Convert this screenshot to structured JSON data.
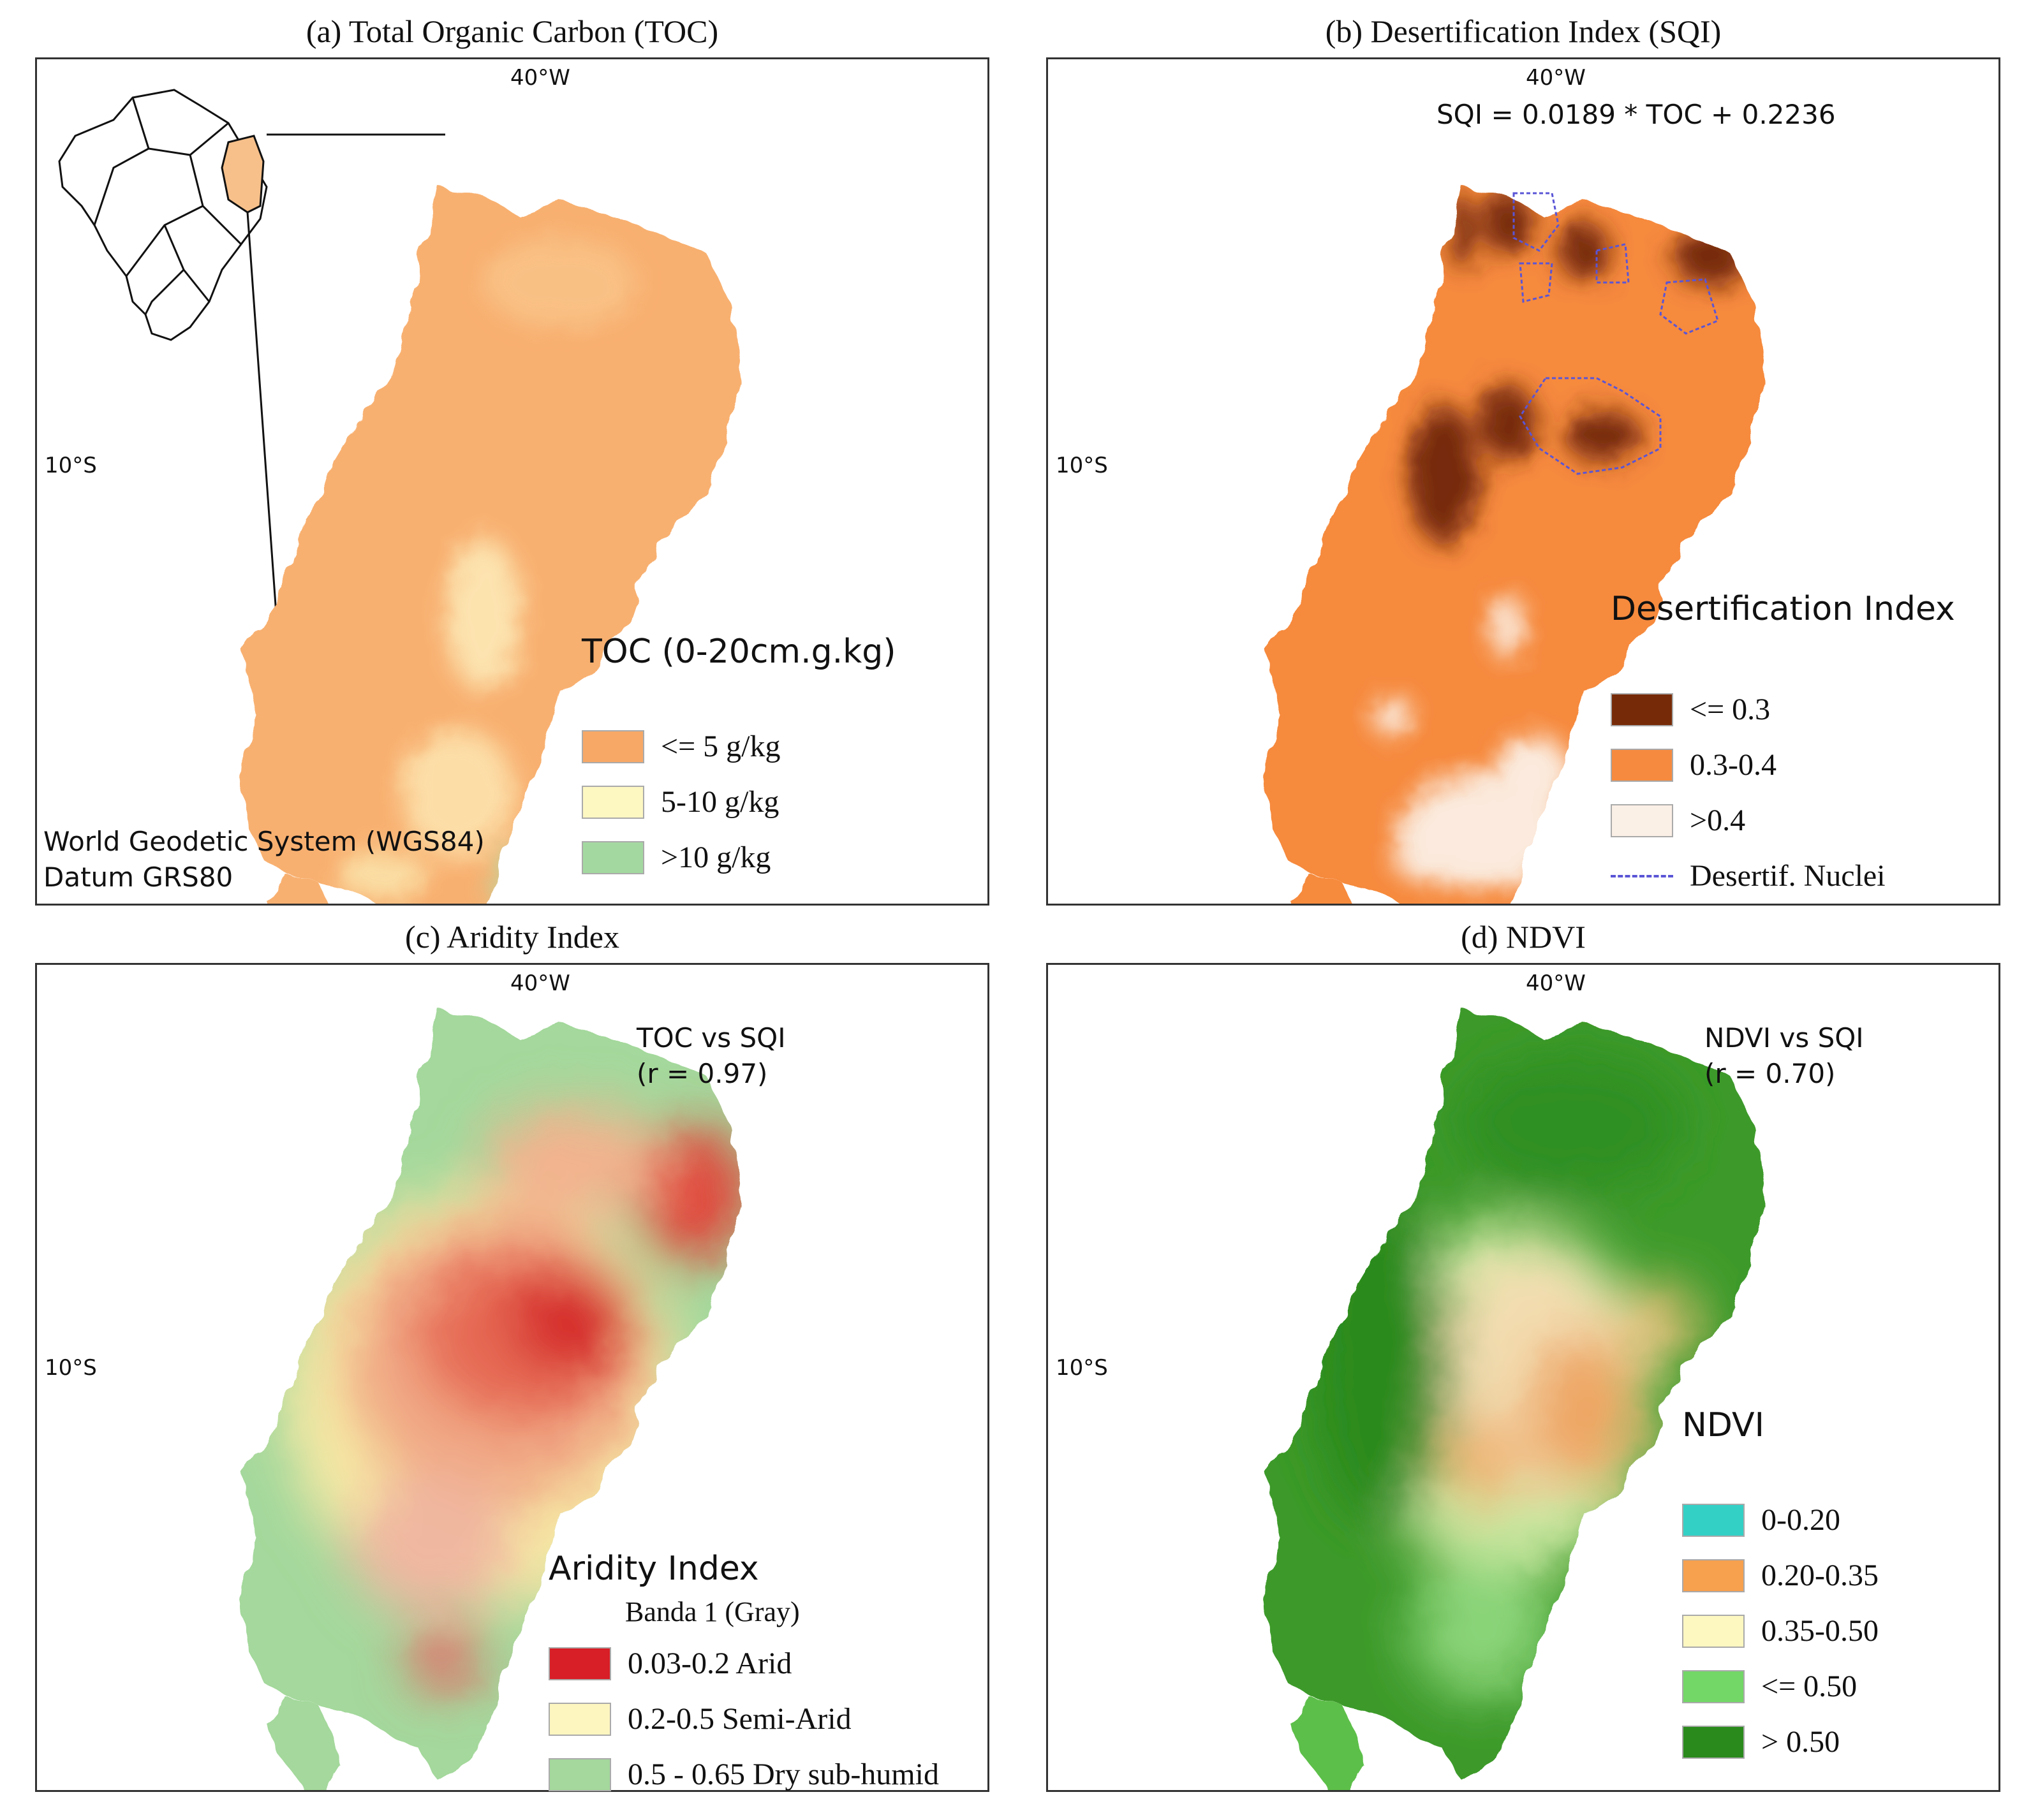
{
  "panels": {
    "a": {
      "title": "(a) Total Organic Carbon (TOC)",
      "lon_label": "40°W",
      "lat_label": "10°S",
      "legend_title": "TOC (0-20cm.g.kg)",
      "legend": [
        {
          "label": "<= 5 g/kg",
          "color": "#f7a866"
        },
        {
          "label": "5-10 g/kg",
          "color": "#fdf7c2"
        },
        {
          "label": ">10 g/kg",
          "color": "#a3d9a0"
        }
      ],
      "datum_line1": "World Geodetic System (WGS84)",
      "datum_line2": "Datum GRS80"
    },
    "b": {
      "title": "(b) Desertification Index (SQI)",
      "lon_label": "40°W",
      "lat_label": "10°S",
      "equation": "SQI = 0.0189 * TOC + 0.2236",
      "legend_title": "Desertification Index",
      "legend": [
        {
          "label": "<= 0.3",
          "color": "#772a07"
        },
        {
          "label": "0.3-0.4",
          "color": "#f68a3e"
        },
        {
          "label": ">0.4",
          "color": "#fbf0e6"
        }
      ],
      "nuclei_label": "Desertif. Nuclei",
      "nuclei_color": "#5a55d6"
    },
    "c": {
      "title": "(c) Aridity Index",
      "lon_label": "40°W",
      "lat_label": "10°S",
      "corr_line1": "TOC vs SQI",
      "corr_line2": "(r = 0.97)",
      "legend_title": "Aridity Index",
      "legend_sub": "Banda 1 (Gray)",
      "legend": [
        {
          "label": "0.03-0.2 Arid",
          "color": "#d81e26"
        },
        {
          "label": "0.2-0.5 Semi-Arid",
          "color": "#fdf6bf"
        },
        {
          "label": "0.5 - 0.65 Dry sub-humid",
          "color": "#a4d89c"
        }
      ]
    },
    "d": {
      "title": "(d) NDVI",
      "lon_label": "40°W",
      "lat_label": "10°S",
      "corr_line1": "NDVI vs SQI",
      "corr_line2": "(r = 0.70)",
      "legend_title": "NDVI",
      "legend": [
        {
          "label": "0-0.20",
          "color": "#33d0c6"
        },
        {
          "label": "0.20-0.35",
          "color": "#f7a04e"
        },
        {
          "label": "0.35-0.50",
          "color": "#fdf7c0"
        },
        {
          "label": "<= 0.50",
          "color": "#72d766"
        },
        {
          "label": "> 0.50",
          "color": "#2a8a1c"
        }
      ]
    }
  }
}
